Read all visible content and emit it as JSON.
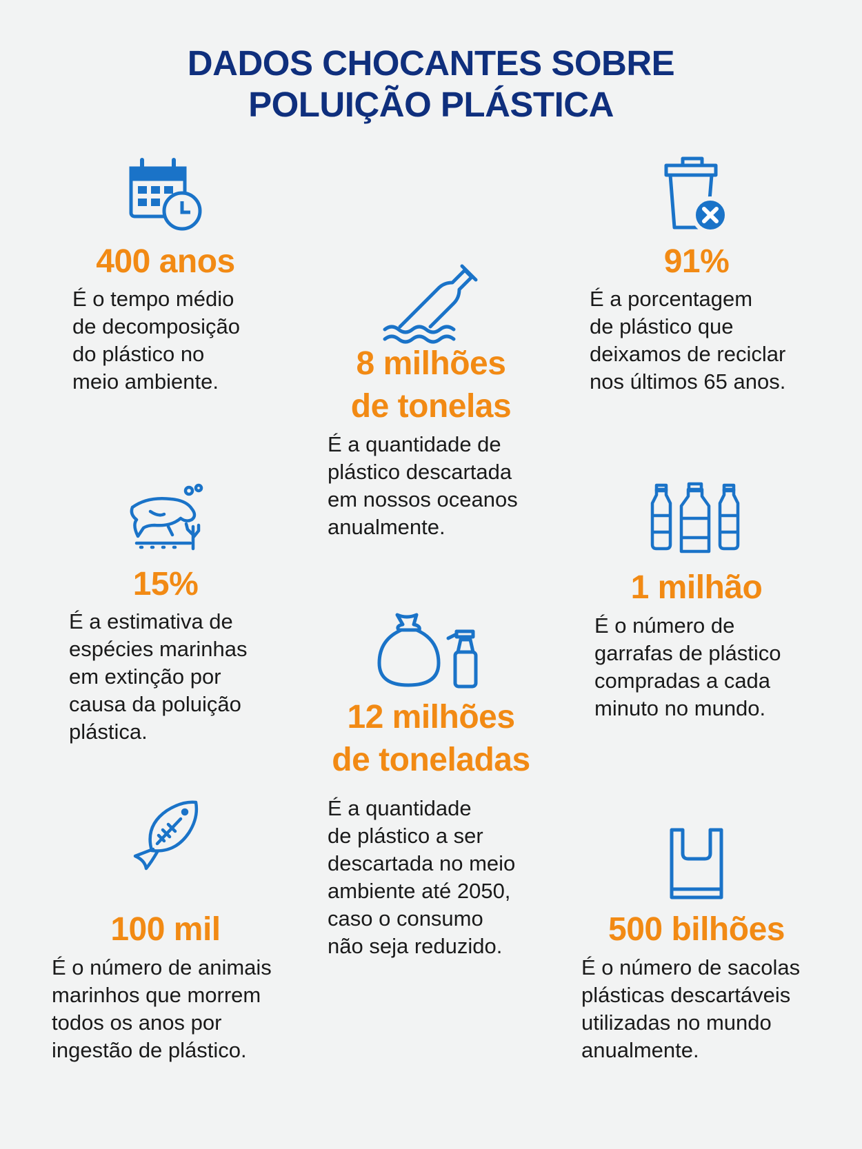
{
  "title": {
    "line1": "DADOS CHOCANTES SOBRE",
    "line2": "POLUIÇÃO PLÁSTICA"
  },
  "colors": {
    "title": "#0f2f7d",
    "accent": "#f28a14",
    "icon": "#1a73c8",
    "text": "#1a1a1a",
    "background": "#f2f3f3"
  },
  "facts": {
    "decomposition": {
      "icon": "calendar-clock-icon",
      "stat": "400 anos",
      "desc": [
        "É o tempo médio",
        "de decomposição",
        "do plástico no",
        "meio ambiente."
      ]
    },
    "ocean": {
      "icon": "bottle-in-water-icon",
      "stat": [
        "8 milhões",
        "de tonelas"
      ],
      "desc": [
        "É a quantidade de",
        "plástico descartada",
        "em nossos oceanos",
        "anualmente."
      ]
    },
    "recycling": {
      "icon": "trash-can-x-icon",
      "stat": "91%",
      "desc": [
        "É a porcentagem",
        "de plástico que",
        "deixamos de reciclar",
        "nos últimos 65 anos."
      ]
    },
    "species": {
      "icon": "manatee-icon",
      "stat": "15%",
      "desc": [
        "É a estimativa de",
        "espécies marinhas",
        "em extinção por",
        "causa da poluição",
        "plástica."
      ]
    },
    "future": {
      "icon": "garbage-bag-spray-icon",
      "stat": [
        "12 milhões",
        "de toneladas"
      ],
      "desc": [
        "É a quantidade",
        "de plástico a ser",
        "descartada no meio",
        "ambiente até 2050,",
        "caso o consumo",
        "não seja reduzido."
      ]
    },
    "bottles": {
      "icon": "plastic-bottles-icon",
      "stat": "1 milhão",
      "desc": [
        "É o número de",
        "garrafas de plástico",
        "compradas a cada",
        "minuto no mundo."
      ]
    },
    "animals": {
      "icon": "fish-skeleton-icon",
      "stat": "100 mil",
      "desc": [
        "É o número de animais",
        "marinhos que morrem",
        "todos os anos por",
        "ingestão de plástico."
      ]
    },
    "bags": {
      "icon": "plastic-bag-icon",
      "stat": "500 bilhões",
      "desc": [
        "É o número de sacolas",
        "plásticas descartáveis",
        "utilizadas no mundo",
        "anualmente."
      ]
    }
  }
}
